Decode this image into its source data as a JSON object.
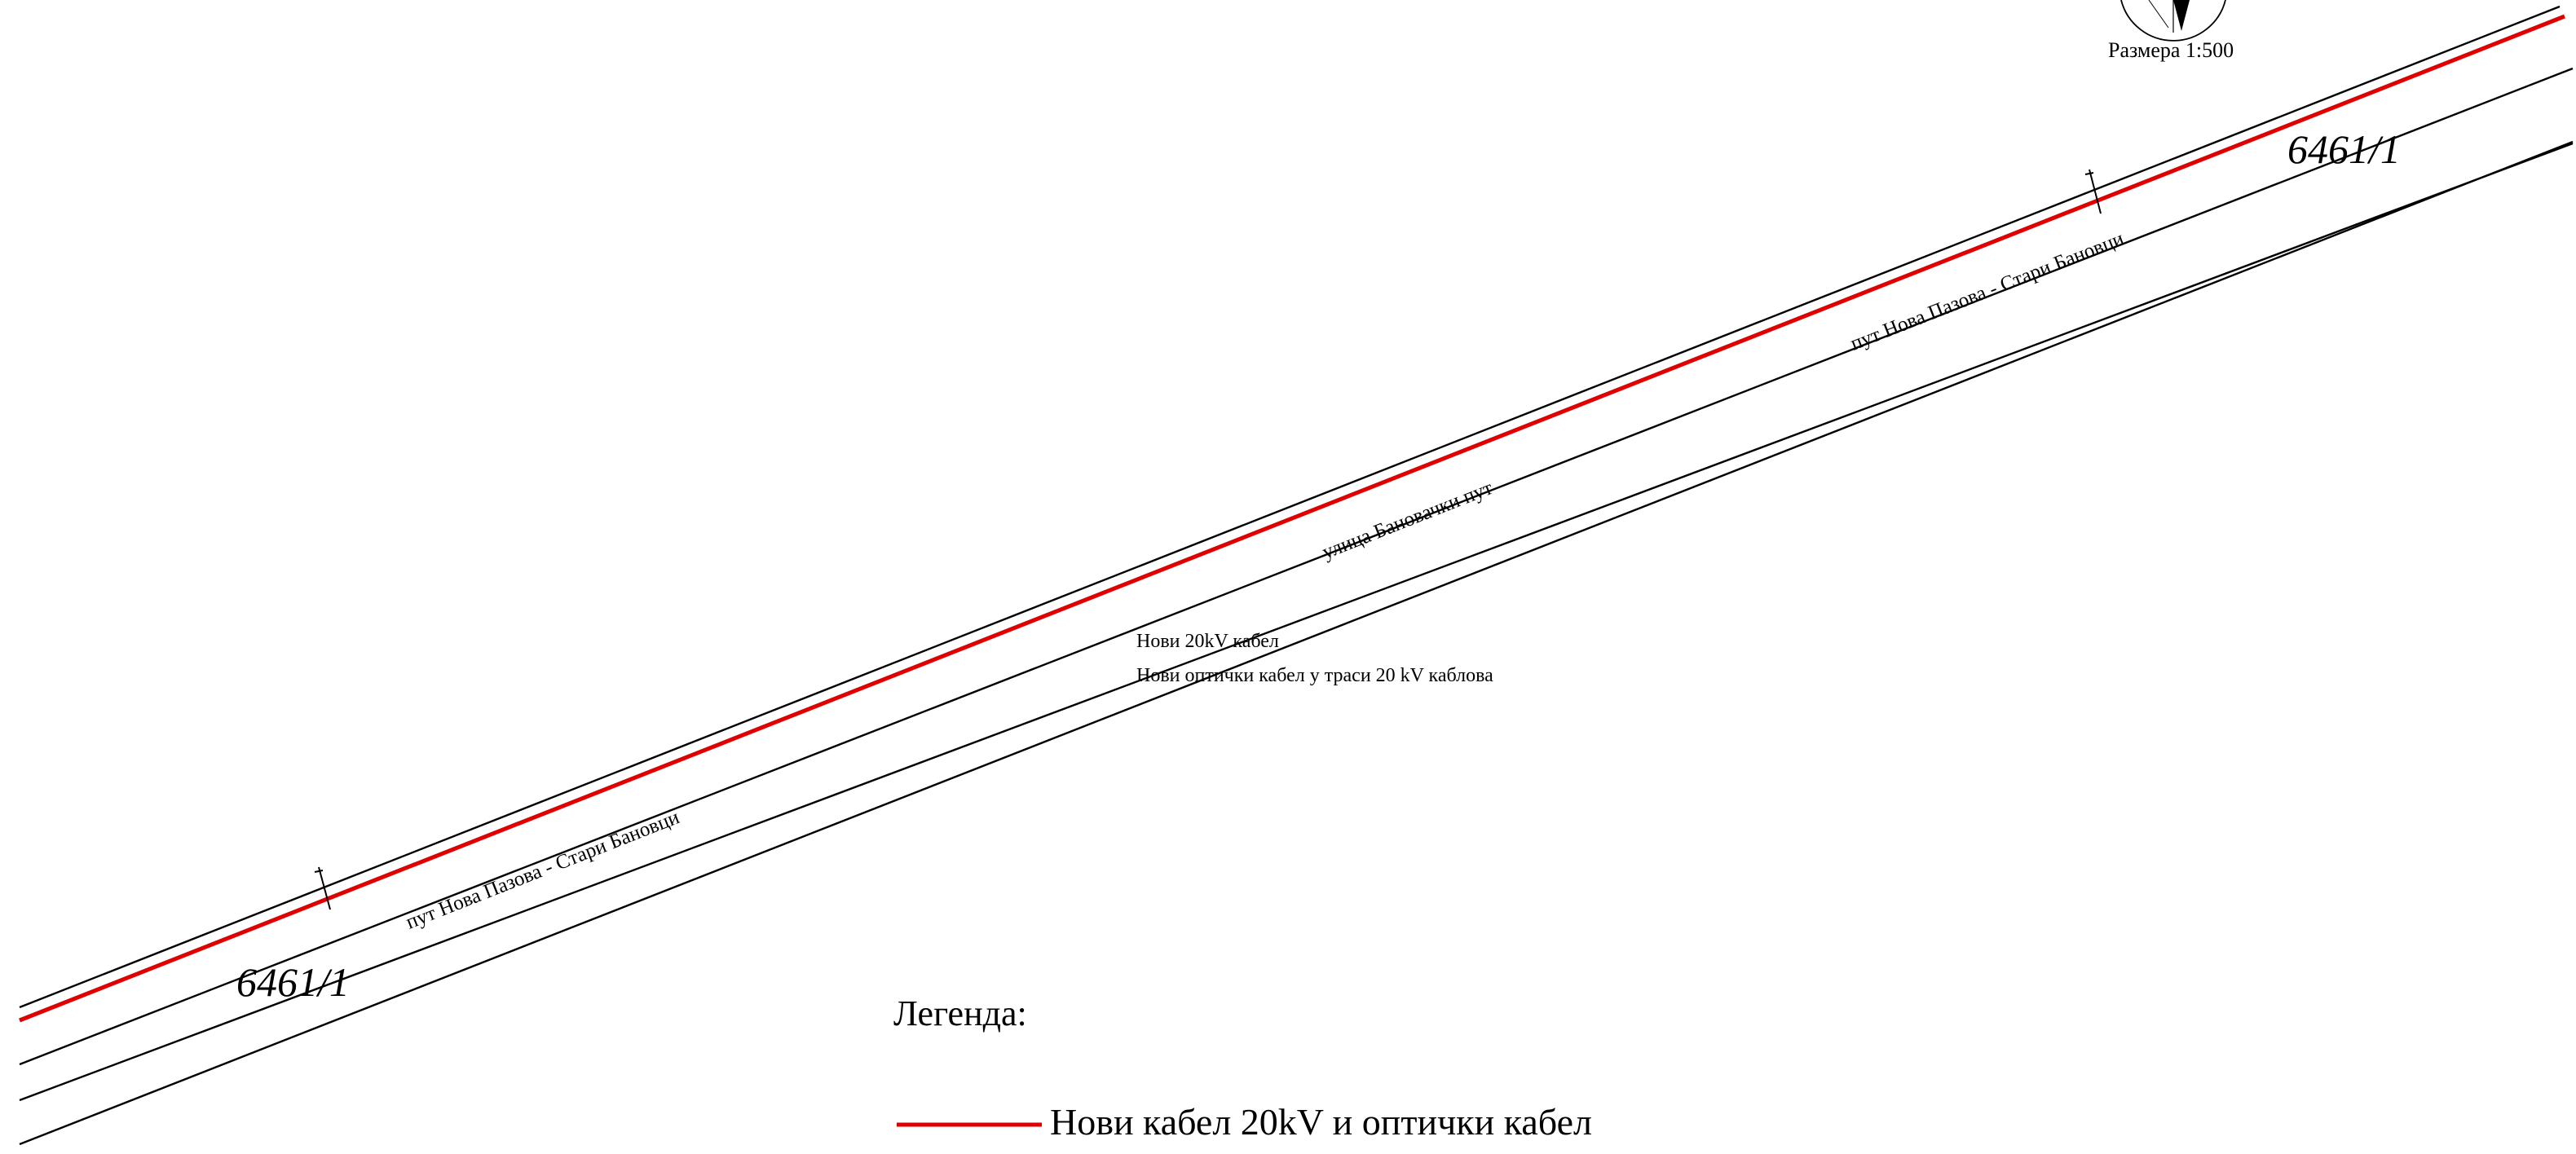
{
  "scale": "Размера 1:500",
  "parcels": [
    "6461/1",
    "6461/1"
  ],
  "streets": {
    "road_left": "пут Нова Пазова - Стари Бановци",
    "road_right": "пут Нова Пазова - Стари Бановци",
    "street_center": "улица Бановачки пут"
  },
  "notes": {
    "new_cable": "Нови 20kV кабел",
    "new_optical": "Нови оптички кабел у траси 20 kV каблова"
  },
  "legend": {
    "title": "Легенда:",
    "items": [
      {
        "label": "Нови кабел 20kV  и   оптички кабел",
        "color": "#e00000"
      }
    ]
  },
  "colors": {
    "cable": "#e00000",
    "lines": "#000000",
    "background": "#ffffff"
  },
  "icons": [
    "north-arrow-icon"
  ]
}
